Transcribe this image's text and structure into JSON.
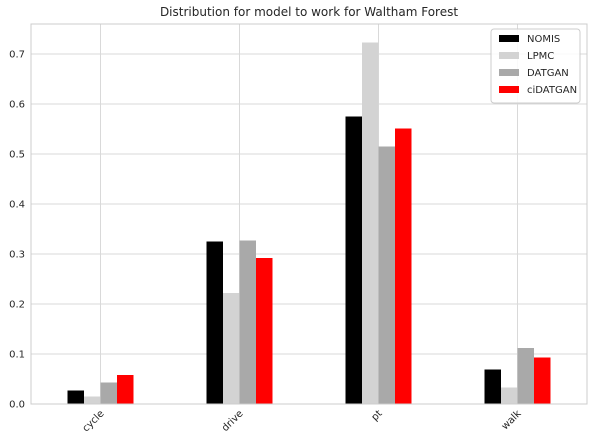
{
  "chart_data": {
    "type": "bar",
    "title": "Distribution for model to work for Waltham Forest",
    "xlabel": "",
    "ylabel": "",
    "categories": [
      "cycle",
      "drive",
      "pt",
      "walk"
    ],
    "ylim": [
      0,
      0.76
    ],
    "yticks": [
      "0.0",
      "0.1",
      "0.2",
      "0.3",
      "0.4",
      "0.5",
      "0.6",
      "0.7"
    ],
    "grid": true,
    "legend_position": "top-right",
    "series": [
      {
        "name": "NOMIS",
        "color": "#000000",
        "values": [
          0.027,
          0.325,
          0.575,
          0.069
        ]
      },
      {
        "name": "LPMC",
        "color": "#d3d3d3",
        "values": [
          0.015,
          0.222,
          0.723,
          0.033
        ]
      },
      {
        "name": "DATGAN",
        "color": "#a9a9a9",
        "values": [
          0.043,
          0.327,
          0.515,
          0.112
        ]
      },
      {
        "name": "ciDATGAN",
        "color": "#ff0000",
        "values": [
          0.058,
          0.292,
          0.551,
          0.093
        ]
      }
    ]
  }
}
